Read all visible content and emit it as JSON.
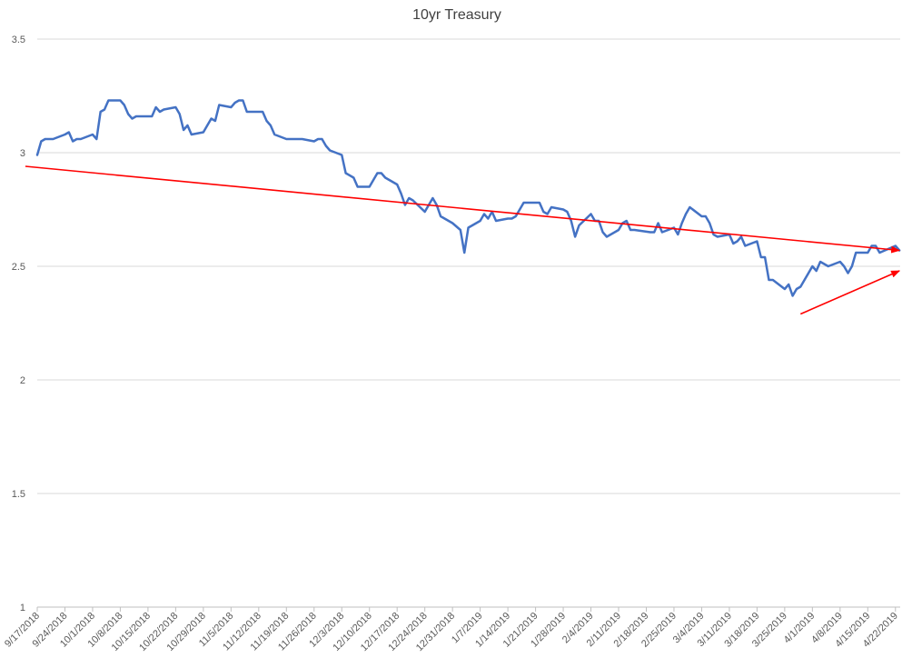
{
  "chart_data": {
    "type": "line",
    "title": "10yr Treasury",
    "xlabel": "",
    "ylabel": "",
    "ylim": [
      1,
      3.5
    ],
    "yticks": [
      "1",
      "1.5",
      "2",
      "2.5",
      "3",
      "3.5"
    ],
    "grid": true,
    "legend": "none",
    "x_tick_labels": [
      "9/17/2018",
      "9/24/2018",
      "10/1/2018",
      "10/8/2018",
      "10/15/2018",
      "10/22/2018",
      "10/29/2018",
      "11/5/2018",
      "11/12/2018",
      "11/19/2018",
      "11/26/2018",
      "12/3/2018",
      "12/10/2018",
      "12/17/2018",
      "12/24/2018",
      "12/31/2018",
      "1/7/2019",
      "1/14/2019",
      "1/21/2019",
      "1/28/2019",
      "2/4/2019",
      "2/11/2019",
      "2/18/2019",
      "2/25/2019",
      "3/4/2019",
      "3/11/2019",
      "3/18/2019",
      "3/25/2019",
      "4/1/2019",
      "4/8/2019",
      "4/15/2019",
      "4/22/2019"
    ],
    "series": [
      {
        "color": "#4472c4",
        "points": [
          [
            "9/17/2018",
            2.99
          ],
          [
            "9/18/2018",
            3.05
          ],
          [
            "9/19/2018",
            3.06
          ],
          [
            "9/20/2018",
            3.06
          ],
          [
            "9/21/2018",
            3.06
          ],
          [
            "9/24/2018",
            3.08
          ],
          [
            "9/25/2018",
            3.09
          ],
          [
            "9/26/2018",
            3.05
          ],
          [
            "9/27/2018",
            3.06
          ],
          [
            "9/28/2018",
            3.06
          ],
          [
            "10/1/2018",
            3.08
          ],
          [
            "10/2/2018",
            3.06
          ],
          [
            "10/3/2018",
            3.18
          ],
          [
            "10/4/2018",
            3.19
          ],
          [
            "10/5/2018",
            3.23
          ],
          [
            "10/8/2018",
            3.23
          ],
          [
            "10/9/2018",
            3.21
          ],
          [
            "10/10/2018",
            3.17
          ],
          [
            "10/11/2018",
            3.15
          ],
          [
            "10/12/2018",
            3.16
          ],
          [
            "10/15/2018",
            3.16
          ],
          [
            "10/16/2018",
            3.16
          ],
          [
            "10/17/2018",
            3.2
          ],
          [
            "10/18/2018",
            3.18
          ],
          [
            "10/19/2018",
            3.19
          ],
          [
            "10/22/2018",
            3.2
          ],
          [
            "10/23/2018",
            3.17
          ],
          [
            "10/24/2018",
            3.1
          ],
          [
            "10/25/2018",
            3.12
          ],
          [
            "10/26/2018",
            3.08
          ],
          [
            "10/29/2018",
            3.09
          ],
          [
            "10/30/2018",
            3.12
          ],
          [
            "10/31/2018",
            3.15
          ],
          [
            "11/1/2018",
            3.14
          ],
          [
            "11/2/2018",
            3.21
          ],
          [
            "11/5/2018",
            3.2
          ],
          [
            "11/6/2018",
            3.22
          ],
          [
            "11/7/2018",
            3.23
          ],
          [
            "11/8/2018",
            3.23
          ],
          [
            "11/9/2018",
            3.18
          ],
          [
            "11/13/2018",
            3.18
          ],
          [
            "11/14/2018",
            3.14
          ],
          [
            "11/15/2018",
            3.12
          ],
          [
            "11/16/2018",
            3.08
          ],
          [
            "11/19/2018",
            3.06
          ],
          [
            "11/20/2018",
            3.06
          ],
          [
            "11/21/2018",
            3.06
          ],
          [
            "11/23/2018",
            3.06
          ],
          [
            "11/26/2018",
            3.05
          ],
          [
            "11/27/2018",
            3.06
          ],
          [
            "11/28/2018",
            3.06
          ],
          [
            "11/29/2018",
            3.03
          ],
          [
            "11/30/2018",
            3.01
          ],
          [
            "12/3/2018",
            2.99
          ],
          [
            "12/4/2018",
            2.91
          ],
          [
            "12/6/2018",
            2.89
          ],
          [
            "12/7/2018",
            2.85
          ],
          [
            "12/10/2018",
            2.85
          ],
          [
            "12/11/2018",
            2.88
          ],
          [
            "12/12/2018",
            2.91
          ],
          [
            "12/13/2018",
            2.91
          ],
          [
            "12/14/2018",
            2.89
          ],
          [
            "12/17/2018",
            2.86
          ],
          [
            "12/18/2018",
            2.82
          ],
          [
            "12/19/2018",
            2.77
          ],
          [
            "12/20/2018",
            2.8
          ],
          [
            "12/21/2018",
            2.79
          ],
          [
            "12/24/2018",
            2.74
          ],
          [
            "12/26/2018",
            2.8
          ],
          [
            "12/27/2018",
            2.77
          ],
          [
            "12/28/2018",
            2.72
          ],
          [
            "12/31/2018",
            2.69
          ],
          [
            "1/2/2019",
            2.66
          ],
          [
            "1/3/2019",
            2.56
          ],
          [
            "1/4/2019",
            2.67
          ],
          [
            "1/7/2019",
            2.7
          ],
          [
            "1/8/2019",
            2.73
          ],
          [
            "1/9/2019",
            2.71
          ],
          [
            "1/10/2019",
            2.74
          ],
          [
            "1/11/2019",
            2.7
          ],
          [
            "1/14/2019",
            2.71
          ],
          [
            "1/15/2019",
            2.71
          ],
          [
            "1/16/2019",
            2.72
          ],
          [
            "1/17/2019",
            2.75
          ],
          [
            "1/18/2019",
            2.78
          ],
          [
            "1/22/2019",
            2.78
          ],
          [
            "1/23/2019",
            2.74
          ],
          [
            "1/24/2019",
            2.73
          ],
          [
            "1/25/2019",
            2.76
          ],
          [
            "1/28/2019",
            2.75
          ],
          [
            "1/29/2019",
            2.74
          ],
          [
            "1/30/2019",
            2.7
          ],
          [
            "1/31/2019",
            2.63
          ],
          [
            "2/1/2019",
            2.68
          ],
          [
            "2/4/2019",
            2.73
          ],
          [
            "2/5/2019",
            2.7
          ],
          [
            "2/6/2019",
            2.7
          ],
          [
            "2/7/2019",
            2.65
          ],
          [
            "2/8/2019",
            2.63
          ],
          [
            "2/11/2019",
            2.66
          ],
          [
            "2/12/2019",
            2.69
          ],
          [
            "2/13/2019",
            2.7
          ],
          [
            "2/14/2019",
            2.66
          ],
          [
            "2/15/2019",
            2.66
          ],
          [
            "2/19/2019",
            2.65
          ],
          [
            "2/20/2019",
            2.65
          ],
          [
            "2/21/2019",
            2.69
          ],
          [
            "2/22/2019",
            2.65
          ],
          [
            "2/25/2019",
            2.67
          ],
          [
            "2/26/2019",
            2.64
          ],
          [
            "2/27/2019",
            2.69
          ],
          [
            "2/28/2019",
            2.73
          ],
          [
            "3/1/2019",
            2.76
          ],
          [
            "3/4/2019",
            2.72
          ],
          [
            "3/5/2019",
            2.72
          ],
          [
            "3/6/2019",
            2.69
          ],
          [
            "3/7/2019",
            2.64
          ],
          [
            "3/8/2019",
            2.63
          ],
          [
            "3/11/2019",
            2.64
          ],
          [
            "3/12/2019",
            2.6
          ],
          [
            "3/13/2019",
            2.61
          ],
          [
            "3/14/2019",
            2.63
          ],
          [
            "3/15/2019",
            2.59
          ],
          [
            "3/18/2019",
            2.61
          ],
          [
            "3/19/2019",
            2.54
          ],
          [
            "3/20/2019",
            2.54
          ],
          [
            "3/21/2019",
            2.44
          ],
          [
            "3/22/2019",
            2.44
          ],
          [
            "3/25/2019",
            2.4
          ],
          [
            "3/26/2019",
            2.42
          ],
          [
            "3/27/2019",
            2.37
          ],
          [
            "3/28/2019",
            2.4
          ],
          [
            "3/29/2019",
            2.41
          ],
          [
            "4/1/2019",
            2.5
          ],
          [
            "4/2/2019",
            2.48
          ],
          [
            "4/3/2019",
            2.52
          ],
          [
            "4/4/2019",
            2.51
          ],
          [
            "4/5/2019",
            2.5
          ],
          [
            "4/8/2019",
            2.52
          ],
          [
            "4/9/2019",
            2.5
          ],
          [
            "4/10/2019",
            2.47
          ],
          [
            "4/11/2019",
            2.5
          ],
          [
            "4/12/2019",
            2.56
          ],
          [
            "4/15/2019",
            2.56
          ],
          [
            "4/16/2019",
            2.59
          ],
          [
            "4/17/2019",
            2.59
          ],
          [
            "4/18/2019",
            2.56
          ],
          [
            "4/22/2019",
            2.59
          ],
          [
            "4/23/2019",
            2.57
          ]
        ]
      }
    ],
    "annotations": [
      {
        "type": "arrow",
        "color": "#ff0000",
        "from": [
          "9/14/2018",
          2.94
        ],
        "to": [
          "4/23/2019",
          2.57
        ]
      },
      {
        "type": "arrow",
        "color": "#ff0000",
        "from": [
          "3/29/2019",
          2.29
        ],
        "to": [
          "4/23/2019",
          2.48
        ]
      }
    ]
  }
}
